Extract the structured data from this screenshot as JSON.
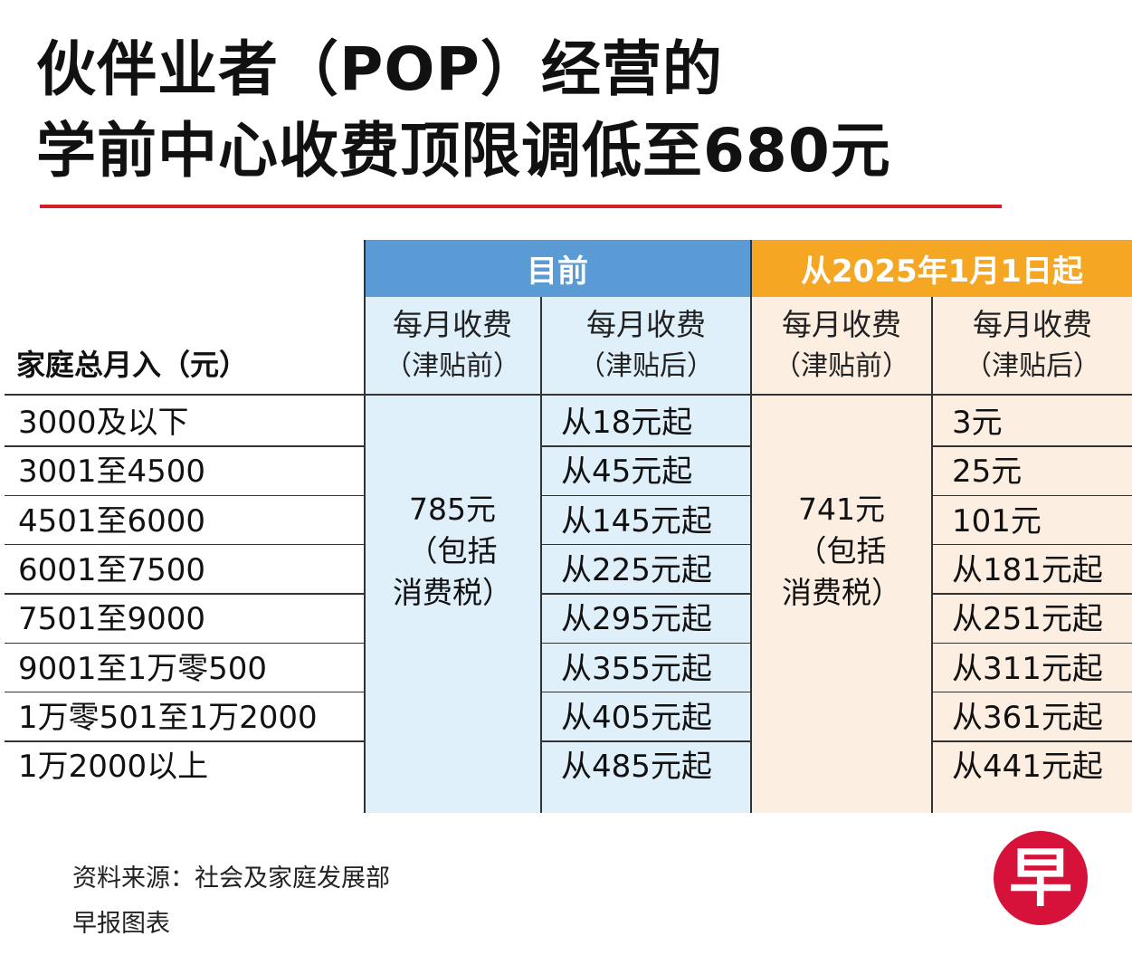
{
  "title": {
    "line1": "伙伴业者（POP）经营的",
    "line2": "学前中心收费顶限调低至680元"
  },
  "colors": {
    "accent_red": "#d71e2b",
    "current_header": "#5b9bd5",
    "new_header": "#f5a623",
    "current_bg": "#dff0fa",
    "new_bg": "#fdeee2",
    "logo": "#d6123a"
  },
  "chart_data": {
    "type": "table",
    "row_header": "家庭总月入（元）",
    "groups": [
      {
        "label": "目前",
        "col_before": "每月收费",
        "col_before_note": "（津贴前）",
        "col_after": "每月收费",
        "col_after_note": "（津贴后）",
        "fee_before": {
          "amount": "785元",
          "note1": "（包括",
          "note2": "消费税）"
        }
      },
      {
        "label": "从2025年1月1日起",
        "col_before": "每月收费",
        "col_before_note": "（津贴前）",
        "col_after": "每月收费",
        "col_after_note": "（津贴后）",
        "fee_before": {
          "amount": "741元",
          "note1": "（包括",
          "note2": "消费税）"
        }
      }
    ],
    "rows": [
      {
        "income": "3000及以下",
        "current_after": "从18元起",
        "new_after": "3元"
      },
      {
        "income": "3001至4500",
        "current_after": "从45元起",
        "new_after": "25元"
      },
      {
        "income": "4501至6000",
        "current_after": "从145元起",
        "new_after": "101元"
      },
      {
        "income": "6001至7500",
        "current_after": "从225元起",
        "new_after": "从181元起"
      },
      {
        "income": "7501至9000",
        "current_after": "从295元起",
        "new_after": "从251元起"
      },
      {
        "income": "9001至1万零500",
        "current_after": "从355元起",
        "new_after": "从311元起"
      },
      {
        "income": "1万零501至1万2000",
        "current_after": "从405元起",
        "new_after": "从361元起"
      },
      {
        "income": "1万2000以上",
        "current_after": "从485元起",
        "new_after": "从441元起"
      }
    ]
  },
  "footer": {
    "source": "资料来源：社会及家庭发展部",
    "credit": "早报图表",
    "logo_char": "早"
  }
}
